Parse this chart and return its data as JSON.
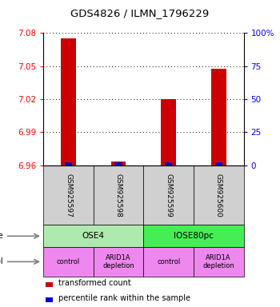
{
  "title": "GDS4826 / ILMN_1796229",
  "samples": [
    "GSM925597",
    "GSM925598",
    "GSM925599",
    "GSM925600"
  ],
  "red_values": [
    7.075,
    6.963,
    7.02,
    7.048
  ],
  "ylim_left": [
    6.96,
    7.08
  ],
  "ylim_right": [
    0,
    100
  ],
  "yticks_left": [
    6.96,
    6.99,
    7.02,
    7.05,
    7.08
  ],
  "yticks_right": [
    0,
    25,
    50,
    75,
    100
  ],
  "ytick_labels_left": [
    "6.96",
    "6.99",
    "7.02",
    "7.05",
    "7.08"
  ],
  "ytick_labels_right": [
    "0",
    "25",
    "50",
    "75",
    "100%"
  ],
  "cell_line_labels": [
    "OSE4",
    "IOSE80pc"
  ],
  "cell_line_colors": [
    "#AEEAAE",
    "#44EE55"
  ],
  "cell_line_spans": [
    [
      0,
      2
    ],
    [
      2,
      4
    ]
  ],
  "protocol_labels": [
    "control",
    "ARID1A\ndepletion",
    "control",
    "ARID1A\ndepletion"
  ],
  "protocol_color": "#EE88EE",
  "sample_box_color": "#D0D0D0",
  "bar_color_red": "#CC0000",
  "bar_color_blue": "#0000CC",
  "blue_percentiles": [
    2,
    2,
    2,
    2
  ],
  "legend_red": "transformed count",
  "legend_blue": "percentile rank within the sample",
  "base_value": 6.96
}
